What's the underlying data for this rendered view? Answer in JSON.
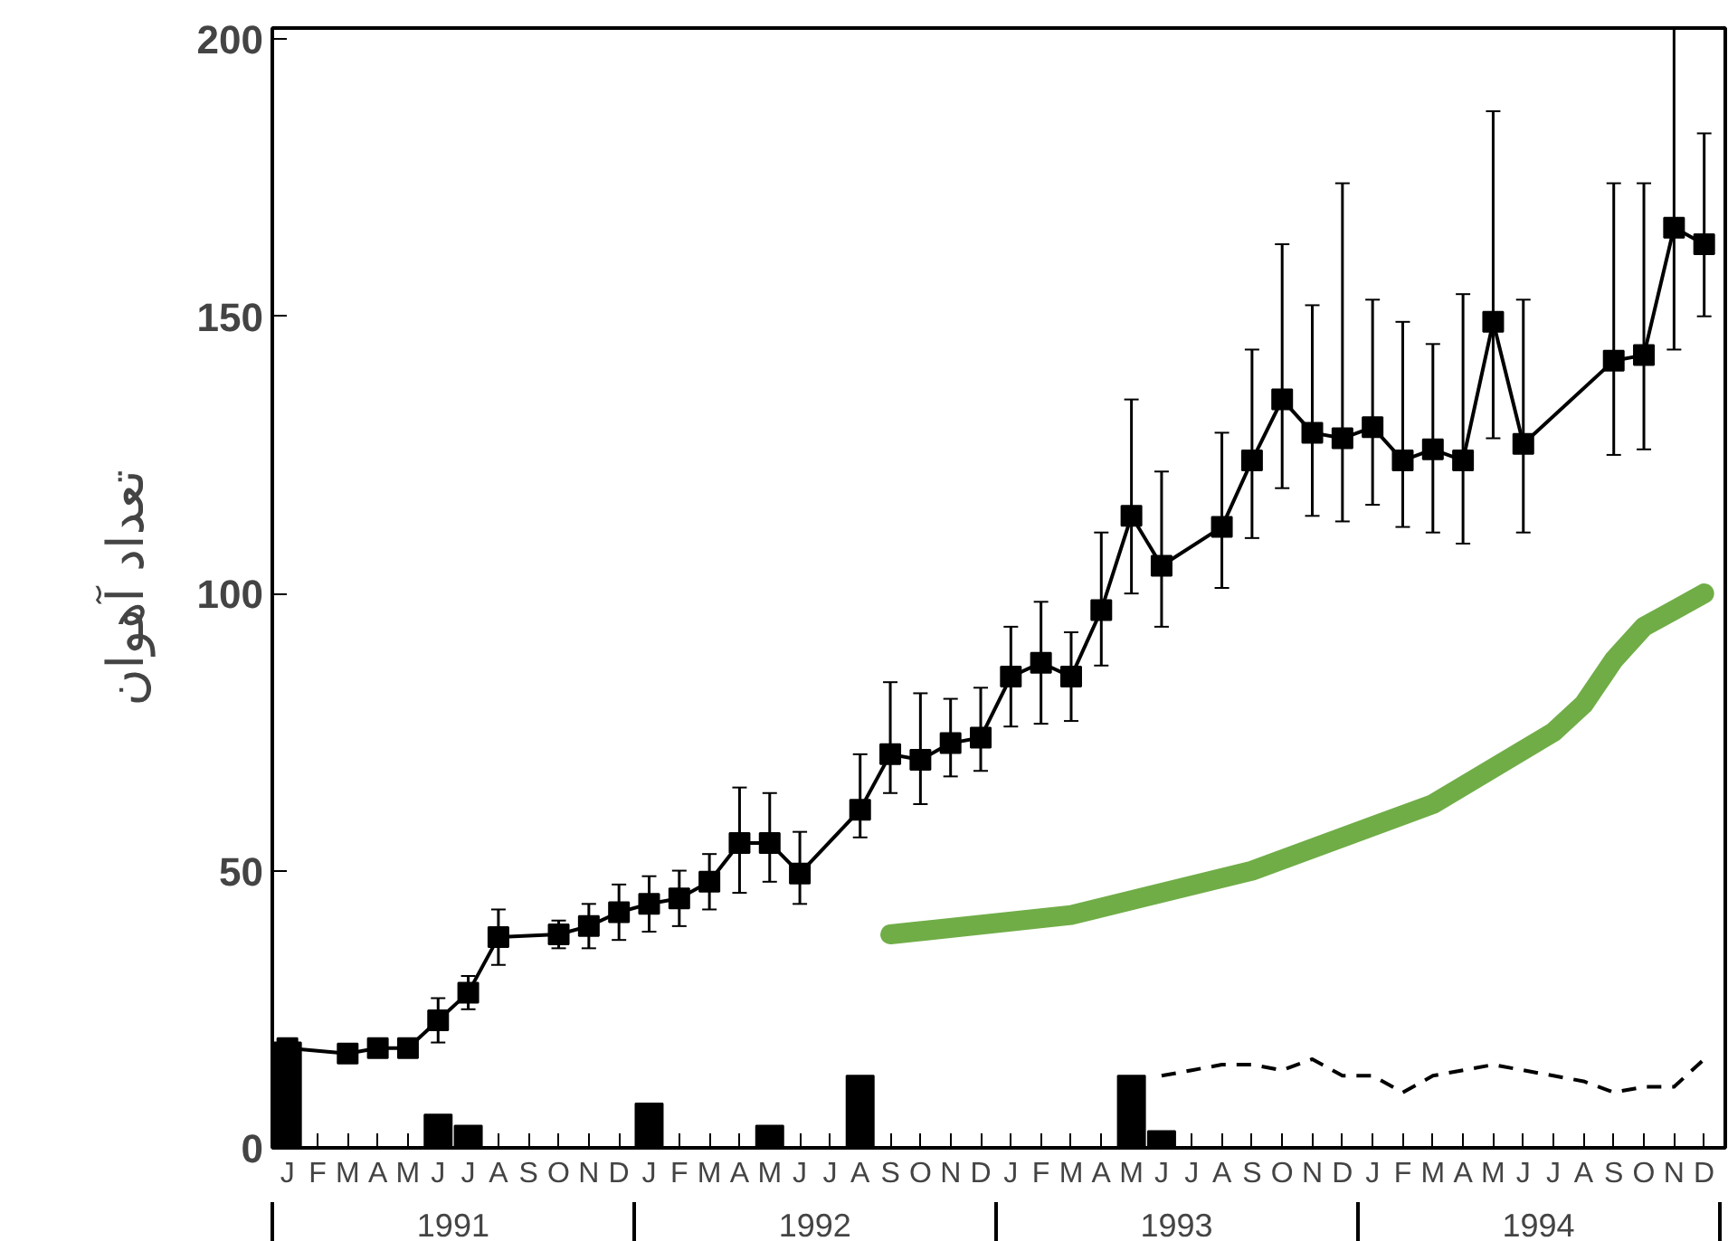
{
  "chart_data": {
    "type": "line",
    "ylabel": "تعداد آهوان",
    "categories": [
      "J",
      "F",
      "M",
      "A",
      "M",
      "J",
      "J",
      "A",
      "S",
      "O",
      "N",
      "D",
      "J",
      "F",
      "M",
      "A",
      "M",
      "J",
      "J",
      "A",
      "S",
      "O",
      "N",
      "D",
      "J",
      "F",
      "M",
      "A",
      "M",
      "J",
      "J",
      "A",
      "S",
      "O",
      "N",
      "D",
      "J",
      "F",
      "M",
      "A",
      "M",
      "J",
      "J",
      "A",
      "S",
      "O",
      "N",
      "D"
    ],
    "annotations": [
      "1991",
      "1992",
      "1993",
      "1994"
    ],
    "ylim": [
      0,
      202
    ],
    "yticks": [
      0,
      50,
      100,
      150,
      200
    ],
    "grid": false,
    "series": [
      {
        "type": "bar",
        "color": "#000000",
        "values": [
          19,
          null,
          null,
          null,
          null,
          6,
          4,
          null,
          null,
          null,
          null,
          null,
          8,
          null,
          null,
          null,
          4,
          null,
          null,
          13,
          null,
          null,
          null,
          null,
          null,
          null,
          null,
          null,
          13,
          3,
          null,
          null,
          null,
          null,
          null,
          null,
          null,
          null,
          null,
          null,
          null,
          null,
          null,
          null,
          null,
          null,
          null,
          null
        ]
      },
      {
        "color": "#000000",
        "marker": "square",
        "line_style": "solid",
        "values": [
          18,
          null,
          17,
          18,
          18,
          23,
          28,
          38,
          null,
          38.5,
          40,
          42.5,
          44,
          45,
          48,
          55,
          55,
          49.5,
          null,
          61,
          71,
          70,
          73,
          74,
          85,
          87.5,
          85,
          97,
          114,
          105,
          null,
          112,
          124,
          135,
          129,
          128,
          130,
          124,
          126,
          124,
          149,
          127,
          null,
          null,
          142,
          143,
          166,
          163
        ],
        "errors": [
          null,
          null,
          null,
          null,
          null,
          4,
          3,
          5,
          null,
          2.5,
          4,
          5,
          5,
          5,
          5,
          [
            46,
            65
          ],
          [
            48,
            64
          ],
          [
            44,
            57
          ],
          null,
          [
            56,
            71
          ],
          [
            64,
            84
          ],
          [
            62,
            82
          ],
          [
            67,
            81
          ],
          [
            68,
            83
          ],
          9,
          11,
          8,
          [
            87,
            111
          ],
          [
            100,
            135
          ],
          [
            94,
            122
          ],
          null,
          [
            101,
            129
          ],
          [
            110,
            144
          ],
          [
            119,
            163
          ],
          [
            114,
            152
          ],
          [
            113,
            174
          ],
          [
            116,
            153
          ],
          [
            112,
            149
          ],
          [
            111,
            145
          ],
          [
            109,
            154
          ],
          [
            128,
            187
          ],
          [
            111,
            153
          ],
          null,
          null,
          [
            125,
            174
          ],
          [
            126,
            174
          ],
          [
            144,
            202
          ],
          [
            150,
            183
          ]
        ]
      },
      {
        "color": "#000000",
        "marker": "none",
        "line_style": "dashed",
        "values": [
          null,
          null,
          null,
          null,
          null,
          null,
          null,
          null,
          null,
          null,
          null,
          null,
          null,
          null,
          null,
          null,
          null,
          null,
          null,
          null,
          null,
          null,
          null,
          null,
          null,
          null,
          null,
          null,
          null,
          13,
          14,
          15,
          15,
          14,
          16,
          13,
          13,
          10,
          13,
          14,
          15,
          14,
          13,
          12,
          10,
          11,
          11,
          16
        ]
      },
      {
        "color": "#70ad47",
        "marker": "none",
        "line_style": "solid",
        "values": [
          null,
          null,
          null,
          null,
          null,
          null,
          null,
          null,
          null,
          null,
          null,
          null,
          null,
          null,
          null,
          null,
          null,
          null,
          null,
          null,
          38.5,
          null,
          null,
          null,
          null,
          null,
          42,
          null,
          null,
          null,
          null,
          null,
          50,
          null,
          null,
          null,
          null,
          null,
          62,
          null,
          null,
          null,
          75,
          80,
          88,
          94,
          97,
          100
        ]
      }
    ]
  }
}
